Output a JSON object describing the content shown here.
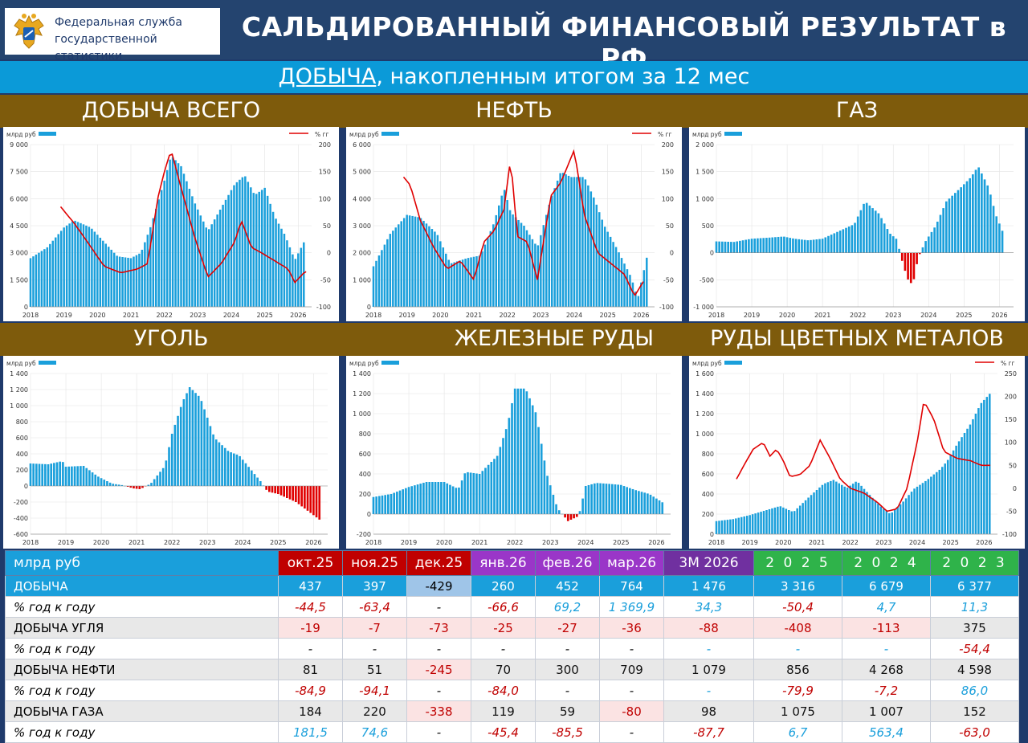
{
  "header": {
    "org_line1": "Федеральная служба",
    "org_line2": "государственной статистики",
    "title": "САЛЬДИРОВАННЫЙ ФИНАНСОВЫЙ РЕЗУЛЬТАТ в РФ"
  },
  "subtitle": {
    "underlined": "ДОБЫЧА",
    "rest": ", накопленным итогом за 12 мес"
  },
  "sections": {
    "total": "ДОБЫЧА ВСЕГО",
    "oil": "НЕФТЬ",
    "gas": "ГАЗ",
    "coal": "УГОЛЬ",
    "iron": "ЖЕЛЕЗНЫЕ РУДЫ",
    "nonferrous": "РУДЫ ЦВЕТНЫХ МЕТАЛОВ"
  },
  "colors": {
    "bar": "#1a9fdb",
    "neg_bar": "#e00000",
    "line": "#e00000",
    "section_bg": "#7e5b0c",
    "header_bg": "#24446f"
  },
  "chart_data": [
    {
      "type": "bar",
      "title": "ДОБЫЧА ВСЕГО",
      "ylabel": "млрд руб",
      "y2label": "% гг",
      "legend": "top",
      "ylim": [
        0,
        9000
      ],
      "y2lim": [
        -100,
        200
      ],
      "yticks": [
        "0",
        "1 500",
        "3 000",
        "4 500",
        "6 000",
        "7 500",
        "9 000"
      ],
      "y2ticks": [
        "-100",
        "-50",
        "0",
        "50",
        "100",
        "150",
        "200"
      ],
      "xticks": [
        "2018",
        "2019",
        "2020",
        "2021",
        "2022",
        "2023",
        "2024",
        "2025",
        "2026"
      ],
      "anchors": [
        [
          2018.0,
          2700
        ],
        [
          2018.5,
          3300
        ],
        [
          2019.0,
          4400
        ],
        [
          2019.3,
          4800
        ],
        [
          2019.8,
          4400
        ],
        [
          2020.2,
          3600
        ],
        [
          2020.6,
          2800
        ],
        [
          2021.0,
          2700
        ],
        [
          2021.3,
          3000
        ],
        [
          2021.6,
          4500
        ],
        [
          2022.0,
          7000
        ],
        [
          2022.2,
          8400
        ],
        [
          2022.5,
          7800
        ],
        [
          2022.9,
          5800
        ],
        [
          2023.3,
          4200
        ],
        [
          2023.7,
          5500
        ],
        [
          2024.1,
          6800
        ],
        [
          2024.4,
          7300
        ],
        [
          2024.7,
          6200
        ],
        [
          2025.0,
          6600
        ],
        [
          2025.3,
          5000
        ],
        [
          2025.6,
          4000
        ],
        [
          2025.9,
          2600
        ],
        [
          2026.2,
          3700
        ]
      ],
      "line_anchors": [
        [
          2018.9,
          85
        ],
        [
          2019.3,
          55
        ],
        [
          2019.7,
          20
        ],
        [
          2020.2,
          -25
        ],
        [
          2020.7,
          -37
        ],
        [
          2021.2,
          -30
        ],
        [
          2021.5,
          -20
        ],
        [
          2021.8,
          100
        ],
        [
          2022.0,
          150
        ],
        [
          2022.2,
          190
        ],
        [
          2022.5,
          120
        ],
        [
          2022.9,
          30
        ],
        [
          2023.3,
          -45
        ],
        [
          2023.7,
          -20
        ],
        [
          2024.1,
          20
        ],
        [
          2024.3,
          60
        ],
        [
          2024.6,
          10
        ],
        [
          2024.9,
          0
        ],
        [
          2025.3,
          -15
        ],
        [
          2025.7,
          -30
        ],
        [
          2025.9,
          -55
        ],
        [
          2026.2,
          -35
        ]
      ]
    },
    {
      "type": "bar",
      "title": "НЕФТЬ",
      "ylabel": "млрд руб",
      "y2label": "% гг",
      "legend": "top",
      "ylim": [
        0,
        6000
      ],
      "y2lim": [
        -100,
        200
      ],
      "yticks": [
        "0",
        "1 000",
        "2 000",
        "3 000",
        "4 000",
        "5 000",
        "6 000"
      ],
      "y2ticks": [
        "-100",
        "-50",
        "0",
        "50",
        "100",
        "150",
        "200"
      ],
      "xticks": [
        "2018",
        "2019",
        "2020",
        "2021",
        "2022",
        "2023",
        "2024",
        "2025",
        "2026"
      ],
      "anchors": [
        [
          2018.0,
          1500
        ],
        [
          2018.5,
          2700
        ],
        [
          2019.0,
          3400
        ],
        [
          2019.4,
          3300
        ],
        [
          2019.9,
          2700
        ],
        [
          2020.3,
          1600
        ],
        [
          2020.8,
          1800
        ],
        [
          2021.2,
          1900
        ],
        [
          2021.6,
          3100
        ],
        [
          2021.9,
          4400
        ],
        [
          2022.1,
          3500
        ],
        [
          2022.5,
          3000
        ],
        [
          2022.9,
          2200
        ],
        [
          2023.3,
          4000
        ],
        [
          2023.6,
          5000
        ],
        [
          2023.9,
          4800
        ],
        [
          2024.3,
          4800
        ],
        [
          2024.6,
          4000
        ],
        [
          2024.9,
          3000
        ],
        [
          2025.3,
          2100
        ],
        [
          2025.7,
          1100
        ],
        [
          2025.9,
          300
        ],
        [
          2026.0,
          900
        ],
        [
          2026.2,
          2000
        ]
      ],
      "line_anchors": [
        [
          2018.9,
          140
        ],
        [
          2019.1,
          125
        ],
        [
          2019.4,
          60
        ],
        [
          2019.8,
          10
        ],
        [
          2020.2,
          -30
        ],
        [
          2020.6,
          -15
        ],
        [
          2021.0,
          -50
        ],
        [
          2021.3,
          20
        ],
        [
          2021.6,
          40
        ],
        [
          2021.9,
          80
        ],
        [
          2022.1,
          175
        ],
        [
          2022.3,
          30
        ],
        [
          2022.6,
          20
        ],
        [
          2022.9,
          -50
        ],
        [
          2023.3,
          105
        ],
        [
          2023.6,
          130
        ],
        [
          2023.8,
          160
        ],
        [
          2024.0,
          190
        ],
        [
          2024.3,
          70
        ],
        [
          2024.7,
          0
        ],
        [
          2025.1,
          -20
        ],
        [
          2025.5,
          -40
        ],
        [
          2025.8,
          -80
        ],
        [
          2026.1,
          -50
        ]
      ]
    },
    {
      "type": "bar",
      "title": "ГАЗ",
      "ylabel": "млрд руб",
      "legend": "top",
      "ylim": [
        -1000,
        2000
      ],
      "yticks": [
        "-1 000",
        "-500",
        "0",
        "500",
        "1 000",
        "1 500",
        "2 000"
      ],
      "xticks": [
        "2018",
        "2019",
        "2020",
        "2021",
        "2022",
        "2023",
        "2024",
        "2025",
        "2026"
      ],
      "anchors": [
        [
          2018.0,
          210
        ],
        [
          2018.5,
          200
        ],
        [
          2019.0,
          260
        ],
        [
          2019.5,
          280
        ],
        [
          2019.9,
          300
        ],
        [
          2020.2,
          260
        ],
        [
          2020.6,
          230
        ],
        [
          2021.0,
          260
        ],
        [
          2021.4,
          380
        ],
        [
          2021.9,
          530
        ],
        [
          2022.2,
          950
        ],
        [
          2022.6,
          720
        ],
        [
          2022.9,
          360
        ],
        [
          2023.1,
          250
        ],
        [
          2023.25,
          -150
        ],
        [
          2023.4,
          -480
        ],
        [
          2023.55,
          -600
        ],
        [
          2023.7,
          -100
        ],
        [
          2023.9,
          200
        ],
        [
          2024.2,
          500
        ],
        [
          2024.5,
          950
        ],
        [
          2024.9,
          1200
        ],
        [
          2025.2,
          1400
        ],
        [
          2025.4,
          1600
        ],
        [
          2025.7,
          1200
        ],
        [
          2025.9,
          700
        ],
        [
          2026.1,
          380
        ]
      ]
    },
    {
      "type": "bar",
      "title": "УГОЛЬ",
      "ylabel": "млрд руб",
      "legend": "top",
      "ylim": [
        -600,
        1400
      ],
      "yticks": [
        "-600",
        "-400",
        "-200",
        "0",
        "200",
        "400",
        "600",
        "800",
        "1 000",
        "1 200",
        "1 400"
      ],
      "xticks": [
        "2018",
        "2019",
        "2020",
        "2021",
        "2022",
        "2023",
        "2024",
        "2025",
        "2026"
      ],
      "anchors": [
        [
          2018.0,
          280
        ],
        [
          2018.5,
          270
        ],
        [
          2018.9,
          310
        ],
        [
          2019.0,
          240
        ],
        [
          2019.5,
          250
        ],
        [
          2019.9,
          120
        ],
        [
          2020.3,
          30
        ],
        [
          2020.6,
          10
        ],
        [
          2020.9,
          -30
        ],
        [
          2021.1,
          -40
        ],
        [
          2021.4,
          30
        ],
        [
          2021.8,
          250
        ],
        [
          2022.0,
          650
        ],
        [
          2022.3,
          1050
        ],
        [
          2022.5,
          1230
        ],
        [
          2022.8,
          1100
        ],
        [
          2023.2,
          600
        ],
        [
          2023.6,
          430
        ],
        [
          2023.9,
          380
        ],
        [
          2024.2,
          220
        ],
        [
          2024.5,
          60
        ],
        [
          2024.7,
          -70
        ],
        [
          2025.0,
          -100
        ],
        [
          2025.5,
          -200
        ],
        [
          2025.9,
          -330
        ],
        [
          2026.2,
          -430
        ]
      ]
    },
    {
      "type": "bar",
      "title": "ЖЕЛЕЗНЫЕ РУДЫ",
      "ylabel": "млрд руб",
      "legend": "top",
      "ylim": [
        -200,
        1400
      ],
      "yticks": [
        "-200",
        "0",
        "200",
        "400",
        "600",
        "800",
        "1 000",
        "1 200",
        "1 400"
      ],
      "xticks": [
        "2018",
        "2019",
        "2020",
        "2021",
        "2022",
        "2023",
        "2024",
        "2025",
        "2026"
      ],
      "anchors": [
        [
          2018.0,
          170
        ],
        [
          2018.5,
          200
        ],
        [
          2019.0,
          270
        ],
        [
          2019.5,
          320
        ],
        [
          2020.0,
          320
        ],
        [
          2020.4,
          250
        ],
        [
          2020.6,
          420
        ],
        [
          2021.0,
          400
        ],
        [
          2021.5,
          580
        ],
        [
          2021.8,
          900
        ],
        [
          2022.0,
          1250
        ],
        [
          2022.3,
          1250
        ],
        [
          2022.6,
          1000
        ],
        [
          2022.9,
          400
        ],
        [
          2023.2,
          60
        ],
        [
          2023.5,
          -70
        ],
        [
          2023.8,
          -20
        ],
        [
          2024.0,
          280
        ],
        [
          2024.3,
          310
        ],
        [
          2024.7,
          300
        ],
        [
          2025.0,
          290
        ],
        [
          2025.4,
          240
        ],
        [
          2025.8,
          200
        ],
        [
          2026.2,
          110
        ]
      ]
    },
    {
      "type": "bar",
      "title": "РУДЫ ЦВЕТНЫХ МЕТАЛОВ",
      "ylabel": "млрд руб",
      "y2label": "% гг",
      "legend": "top",
      "ylim": [
        0,
        1600
      ],
      "y2lim": [
        -100,
        250
      ],
      "yticks": [
        "0",
        "200",
        "400",
        "600",
        "800",
        "1 000",
        "1 200",
        "1 400",
        "1 600"
      ],
      "y2ticks": [
        "-100",
        "-50",
        "0",
        "50",
        "100",
        "150",
        "200",
        "250"
      ],
      "xticks": [
        "2018",
        "2019",
        "2020",
        "2021",
        "2022",
        "2023",
        "2024",
        "2025",
        "2026"
      ],
      "anchors": [
        [
          2018.0,
          130
        ],
        [
          2018.5,
          150
        ],
        [
          2019.0,
          190
        ],
        [
          2019.5,
          240
        ],
        [
          2019.9,
          280
        ],
        [
          2020.3,
          220
        ],
        [
          2020.8,
          380
        ],
        [
          2021.2,
          500
        ],
        [
          2021.5,
          540
        ],
        [
          2021.9,
          460
        ],
        [
          2022.2,
          530
        ],
        [
          2022.5,
          420
        ],
        [
          2022.9,
          280
        ],
        [
          2023.2,
          200
        ],
        [
          2023.6,
          330
        ],
        [
          2023.9,
          450
        ],
        [
          2024.3,
          540
        ],
        [
          2024.7,
          650
        ],
        [
          2024.9,
          730
        ],
        [
          2025.2,
          900
        ],
        [
          2025.6,
          1100
        ],
        [
          2025.9,
          1300
        ],
        [
          2026.2,
          1410
        ]
      ],
      "line_anchors": [
        [
          2018.6,
          20
        ],
        [
          2018.9,
          60
        ],
        [
          2019.1,
          85
        ],
        [
          2019.4,
          100
        ],
        [
          2019.6,
          70
        ],
        [
          2019.8,
          85
        ],
        [
          2020.0,
          60
        ],
        [
          2020.2,
          25
        ],
        [
          2020.5,
          30
        ],
        [
          2020.8,
          50
        ],
        [
          2021.1,
          105
        ],
        [
          2021.4,
          65
        ],
        [
          2021.7,
          20
        ],
        [
          2022.0,
          0
        ],
        [
          2022.4,
          -10
        ],
        [
          2022.8,
          -30
        ],
        [
          2023.1,
          -50
        ],
        [
          2023.4,
          -45
        ],
        [
          2023.7,
          0
        ],
        [
          2024.0,
          100
        ],
        [
          2024.2,
          190
        ],
        [
          2024.5,
          150
        ],
        [
          2024.8,
          80
        ],
        [
          2025.2,
          65
        ],
        [
          2025.6,
          60
        ],
        [
          2025.9,
          50
        ],
        [
          2026.2,
          50
        ]
      ]
    }
  ],
  "table": {
    "header": [
      "млрд руб",
      "окт.25",
      "ноя.25",
      "дек.25",
      "янв.26",
      "фев.26",
      "мар.26",
      "3М 2026",
      "2 0 2 5",
      "2 0 2 4",
      "2 0 2 3"
    ],
    "rows": [
      {
        "label": "ДОБЫЧА",
        "values": [
          "437",
          "397",
          "-429",
          "260",
          "452",
          "764",
          "1 476",
          "3 316",
          "6 679",
          "6 377"
        ]
      },
      {
        "label": "% год к году",
        "values": [
          "-44,5",
          "-63,4",
          "-",
          "-66,6",
          "69,2",
          "1 369,9",
          "34,3",
          "-50,4",
          "4,7",
          "11,3"
        ]
      },
      {
        "label": "ДОБЫЧА УГЛЯ",
        "values": [
          "-19",
          "-7",
          "-73",
          "-25",
          "-27",
          "-36",
          "-88",
          "-408",
          "-113",
          "375"
        ]
      },
      {
        "label": "% год к году",
        "values": [
          "-",
          "-",
          "-",
          "-",
          "-",
          "-",
          "-",
          "-",
          "-",
          "-54,4"
        ]
      },
      {
        "label": "ДОБЫЧА НЕФТИ",
        "values": [
          "81",
          "51",
          "-245",
          "70",
          "300",
          "709",
          "1 079",
          "856",
          "4 268",
          "4 598"
        ]
      },
      {
        "label": "% год к году",
        "values": [
          "-84,9",
          "-94,1",
          "-",
          "-84,0",
          "-",
          "-",
          "-",
          "-79,9",
          "-7,2",
          "86,0"
        ]
      },
      {
        "label": "ДОБЫЧА ГАЗА",
        "values": [
          "184",
          "220",
          "-338",
          "119",
          "59",
          "-80",
          "98",
          "1 075",
          "1 007",
          "152"
        ]
      },
      {
        "label": "% год к году",
        "values": [
          "181,5",
          "74,6",
          "-",
          "-45,4",
          "-85,5",
          "-",
          "-87,7",
          "6,7",
          "563,4",
          "-63,0"
        ]
      }
    ]
  }
}
